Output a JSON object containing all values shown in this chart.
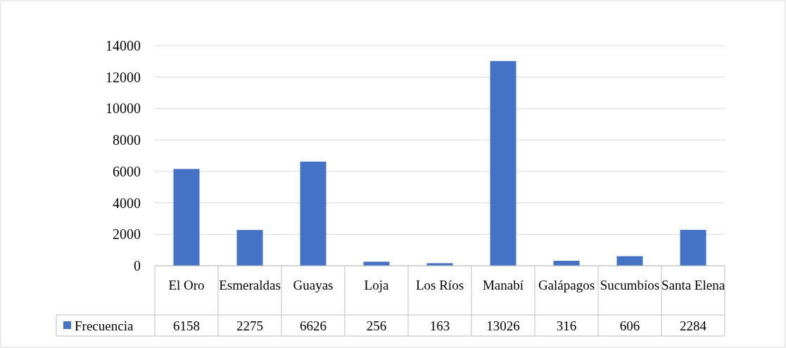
{
  "chart_data": {
    "type": "bar",
    "categories": [
      "El Oro",
      "Esmeraldas",
      "Guayas",
      "Loja",
      "Los Ríos",
      "Manabí",
      "Galápagos",
      "Sucumbíos",
      "Santa Elena"
    ],
    "series": [
      {
        "name": "Frecuencia",
        "color": "#4472c4",
        "values": [
          6158,
          2275,
          6626,
          256,
          163,
          13026,
          316,
          606,
          2284
        ]
      }
    ],
    "ylim": [
      0,
      14000
    ],
    "yticks": [
      0,
      2000,
      4000,
      6000,
      8000,
      10000,
      12000,
      14000
    ],
    "grid": "y",
    "legend": "bottom left",
    "data_labels": true
  }
}
